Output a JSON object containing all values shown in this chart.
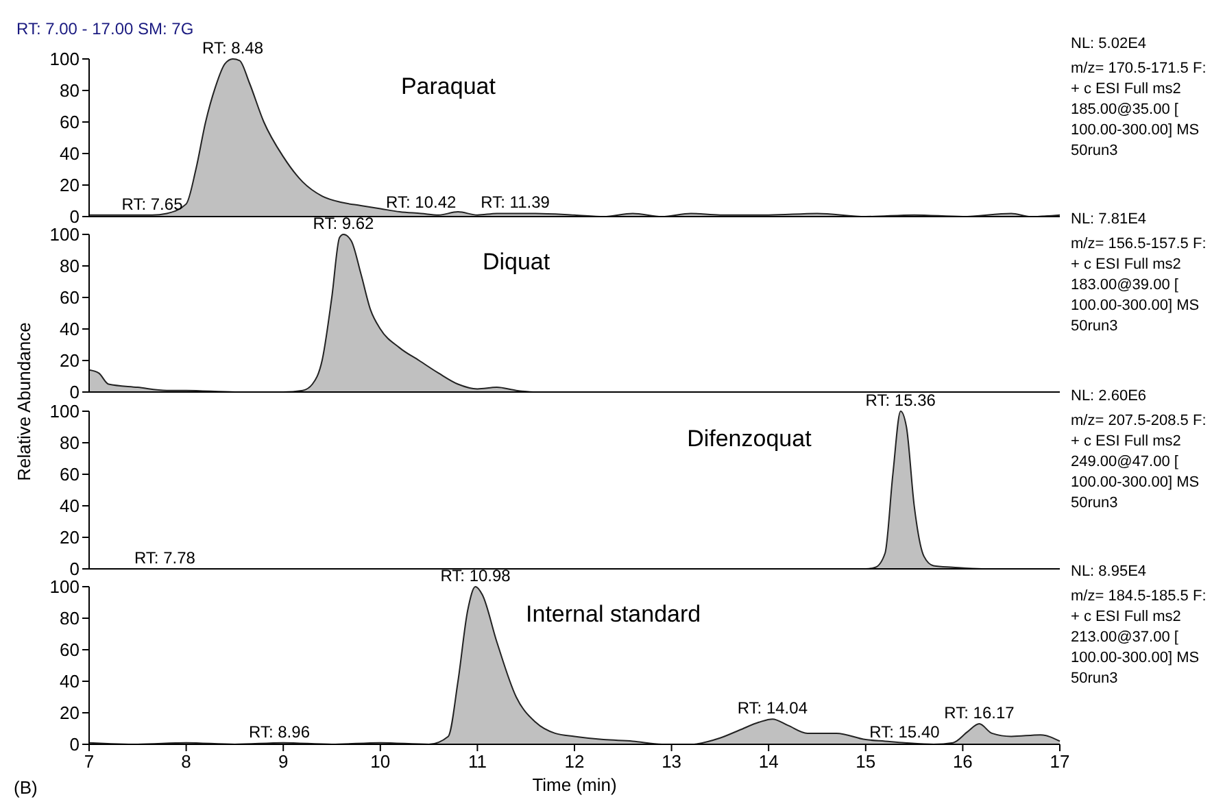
{
  "chart_data": [
    {
      "type": "area",
      "subtitle": "RT: 7.00 - 17.00 SM: 7G",
      "title": "Paraquat",
      "xlim": [
        7,
        17
      ],
      "ylim": [
        0,
        100
      ],
      "yticks": [
        0,
        20,
        40,
        60,
        80,
        100
      ],
      "tick_labels": "y",
      "series": [
        {
          "color": "#c0c0c0",
          "x": [
            7,
            7.5,
            7.65,
            7.8,
            8,
            8.1,
            8.2,
            8.3,
            8.4,
            8.48,
            8.55,
            8.65,
            8.8,
            9,
            9.2,
            9.4,
            9.6,
            9.8,
            10,
            10.2,
            10.42,
            10.6,
            10.8,
            11,
            11.2,
            11.39,
            11.6,
            12,
            12.3,
            12.6,
            12.9,
            13.2,
            13.5,
            14,
            14.5,
            15,
            15.5,
            16,
            16.5,
            16.7,
            17
          ],
          "values": [
            1,
            1,
            1,
            2,
            8,
            30,
            60,
            82,
            97,
            100,
            99,
            85,
            60,
            38,
            22,
            13,
            9,
            7,
            5,
            3,
            2,
            1,
            3,
            1,
            2,
            2,
            2,
            1,
            0,
            2,
            0,
            2,
            1,
            1,
            2,
            0,
            1,
            0,
            2,
            0,
            1
          ]
        }
      ],
      "annotations": [
        {
          "text": "RT: 8.48",
          "x": 8.48,
          "y": 100
        },
        {
          "text": "RT: 7.65",
          "x": 7.65,
          "y": 1
        },
        {
          "text": "RT: 10.42",
          "x": 10.42,
          "y": 2
        },
        {
          "text": "RT: 11.39",
          "x": 11.39,
          "y": 2
        },
        "NL: 5.02E4",
        "m/z= 170.5-171.5 F:",
        "+ c ESI Full ms2",
        "185.00@35.00 [",
        "100.00-300.00]  MS",
        "50run3"
      ]
    },
    {
      "type": "area",
      "title": "Diquat",
      "ylabel": "Relative Abundance",
      "xlim": [
        7,
        17
      ],
      "ylim": [
        0,
        100
      ],
      "yticks": [
        0,
        20,
        40,
        60,
        80,
        100
      ],
      "tick_labels": "y",
      "series": [
        {
          "color": "#c0c0c0",
          "x": [
            7,
            7.1,
            7.2,
            7.5,
            7.8,
            8,
            8.5,
            9,
            9.2,
            9.3,
            9.4,
            9.5,
            9.58,
            9.62,
            9.7,
            9.8,
            9.9,
            10,
            10.2,
            10.4,
            10.6,
            10.8,
            11,
            11.2,
            11.4,
            11.6,
            12,
            13,
            14,
            15,
            16,
            17
          ],
          "values": [
            14,
            12,
            5,
            3,
            1,
            1,
            0,
            0,
            1,
            5,
            20,
            60,
            98,
            100,
            96,
            75,
            52,
            40,
            28,
            20,
            12,
            5,
            2,
            3,
            1,
            0,
            0,
            0,
            0,
            0,
            0,
            0
          ]
        }
      ],
      "annotations": [
        {
          "text": "RT: 9.62",
          "x": 9.62,
          "y": 100
        },
        "NL: 7.81E4",
        "m/z= 156.5-157.5 F:",
        "+ c ESI Full ms2",
        "183.00@39.00 [",
        "100.00-300.00]  MS",
        "50run3"
      ]
    },
    {
      "type": "area",
      "title": "Difenzoquat",
      "xlim": [
        7,
        17
      ],
      "ylim": [
        0,
        100
      ],
      "yticks": [
        0,
        20,
        40,
        60,
        80,
        100
      ],
      "tick_labels": "y",
      "series": [
        {
          "color": "#c0c0c0",
          "x": [
            7,
            8,
            9,
            10,
            11,
            12,
            13,
            14,
            15,
            15.1,
            15.2,
            15.28,
            15.36,
            15.42,
            15.5,
            15.6,
            15.7,
            15.9,
            16.2,
            17
          ],
          "values": [
            0,
            0,
            0,
            0,
            0,
            0,
            0,
            0,
            0,
            1,
            10,
            60,
            100,
            90,
            40,
            8,
            2,
            1,
            0,
            0
          ]
        }
      ],
      "annotations": [
        {
          "text": "RT: 15.36",
          "x": 15.36,
          "y": 100
        },
        {
          "text": "RT: 7.78",
          "x": 7.78,
          "y": 0
        },
        "NL: 2.60E6",
        "m/z= 207.5-208.5 F:",
        "+ c ESI Full ms2",
        "249.00@47.00 [",
        "100.00-300.00]  MS",
        "50run3"
      ]
    },
    {
      "type": "area",
      "title": "Internal standard",
      "xlabel": "Time (min)",
      "xlim": [
        7,
        17
      ],
      "xticks": [
        7,
        8,
        9,
        10,
        11,
        12,
        13,
        14,
        15,
        16,
        17
      ],
      "ylim": [
        0,
        100
      ],
      "yticks": [
        0,
        20,
        40,
        60,
        80,
        100
      ],
      "series": [
        {
          "color": "#c0c0c0",
          "x": [
            7,
            7.5,
            8,
            8.5,
            9,
            9.5,
            10,
            10.5,
            10.7,
            10.8,
            10.9,
            10.98,
            11.05,
            11.2,
            11.4,
            11.6,
            11.8,
            12,
            12.3,
            12.6,
            12.9,
            13.2,
            13.5,
            13.7,
            13.9,
            14.04,
            14.2,
            14.4,
            14.7,
            15,
            15.2,
            15.4,
            15.7,
            15.9,
            16.05,
            16.17,
            16.3,
            16.5,
            16.8,
            17
          ],
          "values": [
            1,
            0,
            1,
            0,
            1,
            0,
            1,
            0,
            5,
            40,
            85,
            100,
            95,
            65,
            30,
            14,
            7,
            5,
            3,
            2,
            0,
            0,
            4,
            9,
            14,
            16,
            12,
            7,
            7,
            3,
            2,
            1,
            0,
            1,
            8,
            13,
            7,
            5,
            6,
            2
          ]
        }
      ],
      "annotations": [
        {
          "text": "RT: 10.98",
          "x": 10.98,
          "y": 100
        },
        {
          "text": "RT: 8.96",
          "x": 8.96,
          "y": 1
        },
        {
          "text": "RT: 14.04",
          "x": 14.04,
          "y": 16
        },
        {
          "text": "RT: 15.40",
          "x": 15.4,
          "y": 1
        },
        {
          "text": "RT: 16.17",
          "x": 16.17,
          "y": 13
        },
        "(B)",
        "NL: 8.95E4",
        "m/z= 184.5-185.5 F:",
        "+ c ESI Full ms2",
        "213.00@37.00 [",
        "100.00-300.00]  MS",
        "50run3"
      ]
    }
  ]
}
